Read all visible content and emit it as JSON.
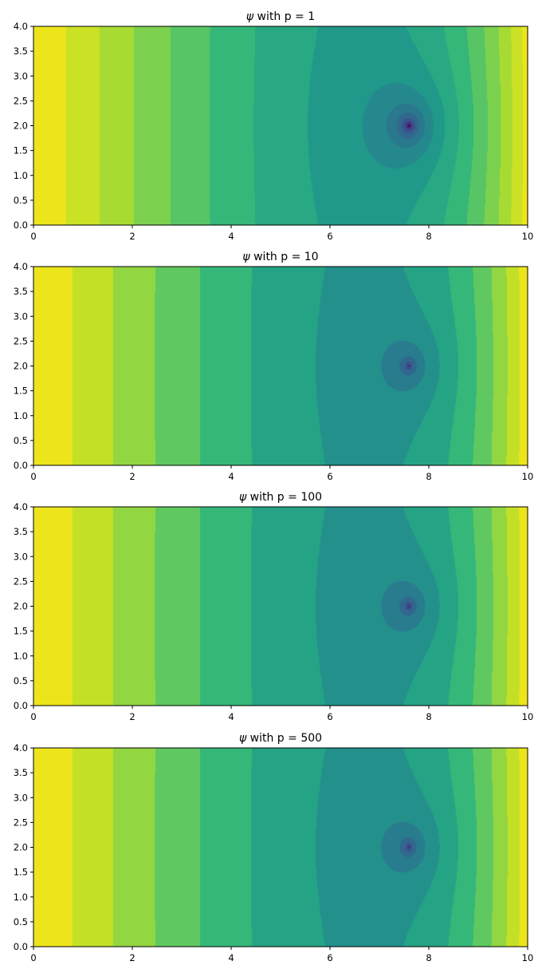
{
  "chart_data": [
    {
      "type": "heatmap",
      "subtype": "filled-contour",
      "title": "ψ with p = 1",
      "p": 1,
      "colormap": "viridis",
      "xlim": [
        0,
        10
      ],
      "ylim": [
        0,
        4
      ],
      "xticks": [
        "0",
        "2",
        "4",
        "6",
        "8",
        "10"
      ],
      "yticks": [
        "0.0",
        "0.5",
        "1.0",
        "1.5",
        "2.0",
        "2.5",
        "3.0",
        "3.5",
        "4.0"
      ],
      "singularity": {
        "x": 7.6,
        "y": 2.0
      },
      "grid": false
    },
    {
      "type": "heatmap",
      "subtype": "filled-contour",
      "title": "ψ with p = 10",
      "p": 10,
      "colormap": "viridis",
      "xlim": [
        0,
        10
      ],
      "ylim": [
        0,
        4
      ],
      "xticks": [
        "0",
        "2",
        "4",
        "6",
        "8",
        "10"
      ],
      "yticks": [
        "0.0",
        "0.5",
        "1.0",
        "1.5",
        "2.0",
        "2.5",
        "3.0",
        "3.5",
        "4.0"
      ],
      "singularity": {
        "x": 7.6,
        "y": 2.0
      },
      "grid": false
    },
    {
      "type": "heatmap",
      "subtype": "filled-contour",
      "title": "ψ with p = 100",
      "p": 100,
      "colormap": "viridis",
      "xlim": [
        0,
        10
      ],
      "ylim": [
        0,
        4
      ],
      "xticks": [
        "0",
        "2",
        "4",
        "6",
        "8",
        "10"
      ],
      "yticks": [
        "0.0",
        "0.5",
        "1.0",
        "1.5",
        "2.0",
        "2.5",
        "3.0",
        "3.5",
        "4.0"
      ],
      "singularity": {
        "x": 7.6,
        "y": 2.0
      },
      "grid": false
    },
    {
      "type": "heatmap",
      "subtype": "filled-contour",
      "title": "ψ with p = 500",
      "p": 500,
      "colormap": "viridis",
      "xlim": [
        0,
        10
      ],
      "ylim": [
        0,
        4
      ],
      "xticks": [
        "0",
        "2",
        "4",
        "6",
        "8",
        "10"
      ],
      "yticks": [
        "0.0",
        "0.5",
        "1.0",
        "1.5",
        "2.0",
        "2.5",
        "3.0",
        "3.5",
        "4.0"
      ],
      "singularity": {
        "x": 7.6,
        "y": 2.0
      },
      "grid": false
    }
  ]
}
